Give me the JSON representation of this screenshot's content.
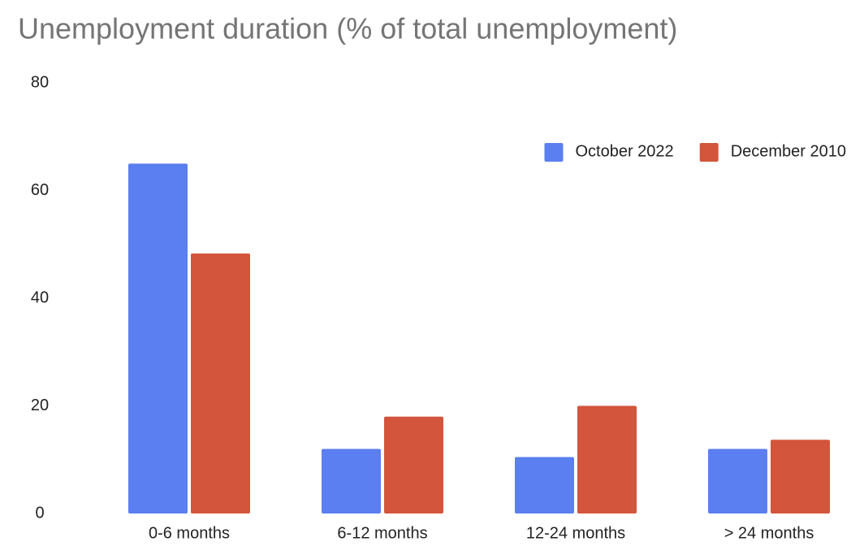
{
  "chart_data": {
    "type": "bar",
    "title": "Unemployment duration (% of total unemployment)",
    "categories": [
      "0-6 months",
      "6-12 months",
      "12-24 months",
      "> 24 months"
    ],
    "series": [
      {
        "name": "October 2022",
        "color": "#5b7ff0",
        "values": [
          65,
          12,
          10.5,
          12
        ]
      },
      {
        "name": "December 2010",
        "color": "#d2553c",
        "values": [
          48.3,
          18,
          20,
          13.7
        ]
      }
    ],
    "ylim": [
      0,
      80
    ],
    "yticks": [
      0,
      20,
      40,
      60,
      80
    ],
    "grid": false,
    "legend": "top-right"
  }
}
